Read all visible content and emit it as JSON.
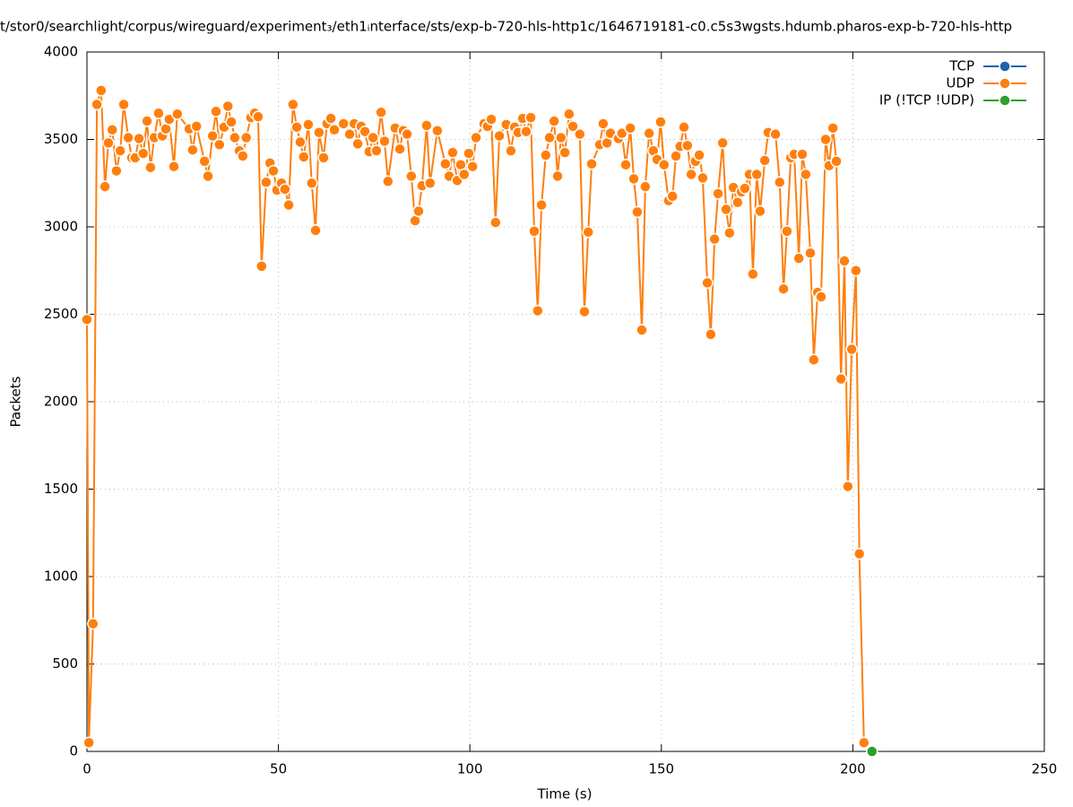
{
  "chart_data": {
    "type": "line",
    "title": "t/stor0/searchlight/corpus/wireguard/experiment₃/eth1ᵢnterface/sts/exp-b-720-hls-http1c/1646719181-c0.c5s3wgsts.hdumb.pharos-exp-b-720-hls-http",
    "x_label": "Time (s)",
    "y_label": "Packets",
    "xlim": [
      0,
      250
    ],
    "xticks": [
      0,
      50,
      100,
      150,
      200,
      250
    ],
    "ylim": [
      0,
      4000
    ],
    "yticks": [
      0,
      500,
      1000,
      1500,
      2000,
      2500,
      3000,
      3500,
      4000
    ],
    "grid": true,
    "legend": "top-right",
    "series": [
      {
        "name": "TCP",
        "color": "#1a64ad",
        "x": [],
        "values": []
      },
      {
        "name": "UDP",
        "color": "#ff7f0e",
        "x": [
          0,
          0.5,
          1.6,
          2.6,
          3.7,
          4.7,
          5.6,
          6.6,
          7.7,
          8.7,
          9.6,
          10.8,
          11.7,
          12.6,
          13.6,
          14.7,
          15.7,
          16.6,
          17.6,
          18.7,
          19.7,
          20.6,
          21.5,
          22.7,
          23.6,
          26.7,
          27.6,
          28.6,
          30.7,
          31.6,
          32.8,
          33.7,
          34.6,
          35.8,
          36.8,
          37.7,
          38.6,
          39.8,
          40.7,
          41.6,
          42.8,
          43.8,
          44.7,
          45.6,
          46.8,
          47.8,
          48.7,
          49.6,
          50.8,
          51.7,
          52.7,
          53.8,
          54.8,
          55.7,
          56.6,
          57.8,
          58.7,
          59.7,
          60.6,
          61.8,
          62.7,
          63.7,
          64.6,
          67,
          68.6,
          69.8,
          70.7,
          71.6,
          72.6,
          73.7,
          74.7,
          75.6,
          76.8,
          77.7,
          78.6,
          80.5,
          81.7,
          82.6,
          83.6,
          84.7,
          85.7,
          86.6,
          87.5,
          88.7,
          89.6,
          91.5,
          93.6,
          94.6,
          95.5,
          96.7,
          97.6,
          98.5,
          99.7,
          100.7,
          101.6,
          103.7,
          104.6,
          105.6,
          106.7,
          107.7,
          109.5,
          110.7,
          111.7,
          112.6,
          113.8,
          114.7,
          115.9,
          116.8,
          117.7,
          118.7,
          119.8,
          120.8,
          122,
          122.9,
          123.8,
          124.8,
          125.9,
          126.9,
          128.7,
          129.9,
          130.9,
          131.8,
          133.9,
          134.8,
          135.8,
          136.7,
          138.8,
          139.7,
          140.7,
          141.9,
          142.8,
          143.7,
          144.9,
          145.8,
          146.8,
          147.9,
          148.9,
          149.8,
          150.7,
          151.9,
          152.9,
          153.8,
          154.9,
          155.9,
          156.8,
          157.8,
          158.9,
          159.9,
          160.8,
          162,
          162.9,
          163.9,
          164.8,
          166,
          166.9,
          167.8,
          168.8,
          169.9,
          170.9,
          171.8,
          173,
          173.9,
          174.9,
          175.8,
          177,
          177.9,
          179.8,
          180.9,
          181.9,
          182.8,
          183.8,
          184.7,
          185.9,
          186.8,
          187.7,
          188.9,
          189.8,
          190.8,
          191.7,
          192.9,
          193.8,
          194.8,
          195.7,
          196.9,
          197.8,
          198.7,
          199.7,
          200.8,
          201.7,
          202.9
        ],
        "values": [
          2470,
          50,
          730,
          3700,
          3780,
          3230,
          3480,
          3555,
          3320,
          3435,
          3700,
          3510,
          3395,
          3395,
          3505,
          3420,
          3605,
          3340,
          3510,
          3650,
          3520,
          3560,
          3615,
          3345,
          3645,
          3560,
          3440,
          3575,
          3375,
          3290,
          3520,
          3660,
          3470,
          3570,
          3690,
          3600,
          3510,
          3435,
          3405,
          3510,
          3625,
          3650,
          3630,
          2775,
          3255,
          3365,
          3320,
          3210,
          3250,
          3215,
          3125,
          3700,
          3570,
          3485,
          3400,
          3585,
          3250,
          2980,
          3540,
          3395,
          3590,
          3620,
          3555,
          3590,
          3530,
          3590,
          3475,
          3575,
          3545,
          3430,
          3510,
          3435,
          3655,
          3490,
          3260,
          3565,
          3445,
          3550,
          3530,
          3290,
          3035,
          3090,
          3235,
          3580,
          3250,
          3550,
          3360,
          3290,
          3425,
          3265,
          3355,
          3300,
          3420,
          3345,
          3510,
          3590,
          3575,
          3615,
          3025,
          3520,
          3585,
          3435,
          3570,
          3540,
          3620,
          3545,
          3625,
          2975,
          2520,
          3125,
          3410,
          3510,
          3605,
          3290,
          3510,
          3425,
          3645,
          3575,
          3530,
          2515,
          2970,
          3360,
          3470,
          3590,
          3480,
          3535,
          3505,
          3535,
          3355,
          3565,
          3275,
          3085,
          2410,
          3230,
          3535,
          3435,
          3385,
          3600,
          3355,
          3150,
          3175,
          3405,
          3460,
          3570,
          3465,
          3300,
          3375,
          3410,
          3280,
          2680,
          2385,
          2930,
          3190,
          3480,
          3100,
          2965,
          3225,
          3140,
          3200,
          3220,
          3300,
          2730,
          3300,
          3090,
          3380,
          3540,
          3530,
          3255,
          2645,
          2975,
          3395,
          3415,
          2820,
          3415,
          3300,
          2850,
          2240,
          2625,
          2600,
          3500,
          3350,
          3565,
          3375,
          2130,
          2805,
          1515,
          2300,
          2750,
          1130,
          50
        ]
      },
      {
        "name": "IP (!TCP  !UDP)",
        "color": "#2ca02c",
        "x": [
          205
        ],
        "values": [
          0
        ]
      }
    ]
  }
}
